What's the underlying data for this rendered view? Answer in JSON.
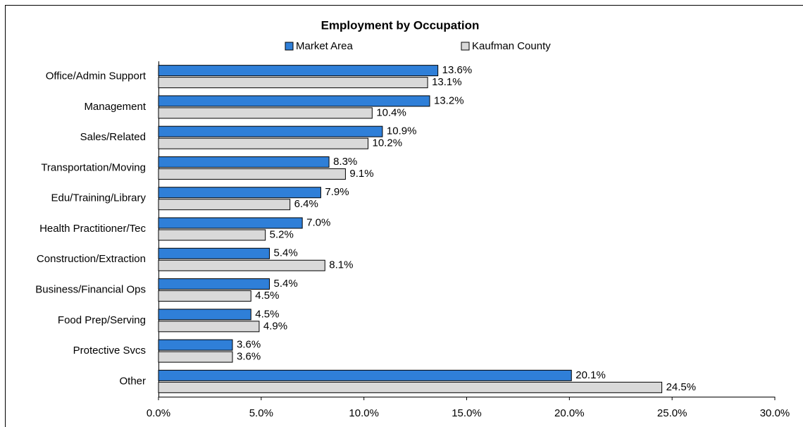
{
  "chart_data": {
    "type": "bar",
    "orientation": "horizontal",
    "title": "Employment by Occupation",
    "categories": [
      "Office/Admin Support",
      "Management",
      "Sales/Related",
      "Transportation/Moving",
      "Edu/Training/Library",
      "Health Practitioner/Tec",
      "Construction/Extraction",
      "Business/Financial Ops",
      "Food Prep/Serving",
      "Protective Svcs",
      "Other"
    ],
    "series": [
      {
        "name": "Market Area",
        "color": "#2f7fd8",
        "values": [
          13.6,
          13.2,
          10.9,
          8.3,
          7.9,
          7.0,
          5.4,
          5.4,
          4.5,
          3.6,
          20.1
        ],
        "value_labels": [
          "13.6%",
          "13.2%",
          "10.9%",
          "8.3%",
          "7.9%",
          "7.0%",
          "5.4%",
          "5.4%",
          "4.5%",
          "3.6%",
          "20.1%"
        ]
      },
      {
        "name": "Kaufman County",
        "color": "#d9d9d9",
        "values": [
          13.1,
          10.4,
          10.2,
          9.1,
          6.4,
          5.2,
          8.1,
          4.5,
          4.9,
          3.6,
          24.5
        ],
        "value_labels": [
          "13.1%",
          "10.4%",
          "10.2%",
          "9.1%",
          "6.4%",
          "5.2%",
          "8.1%",
          "4.5%",
          "4.9%",
          "3.6%",
          "24.5%"
        ]
      }
    ],
    "xlim": [
      0,
      30
    ],
    "xticks": [
      {
        "value": 0,
        "label": "0.0%"
      },
      {
        "value": 5,
        "label": "5.0%"
      },
      {
        "value": 10,
        "label": "10.0%"
      },
      {
        "value": 15,
        "label": "15.0%"
      },
      {
        "value": 20,
        "label": "20.0%"
      },
      {
        "value": 25,
        "label": "25.0%"
      },
      {
        "value": 30,
        "label": "30.0%"
      }
    ],
    "legend": "top"
  }
}
